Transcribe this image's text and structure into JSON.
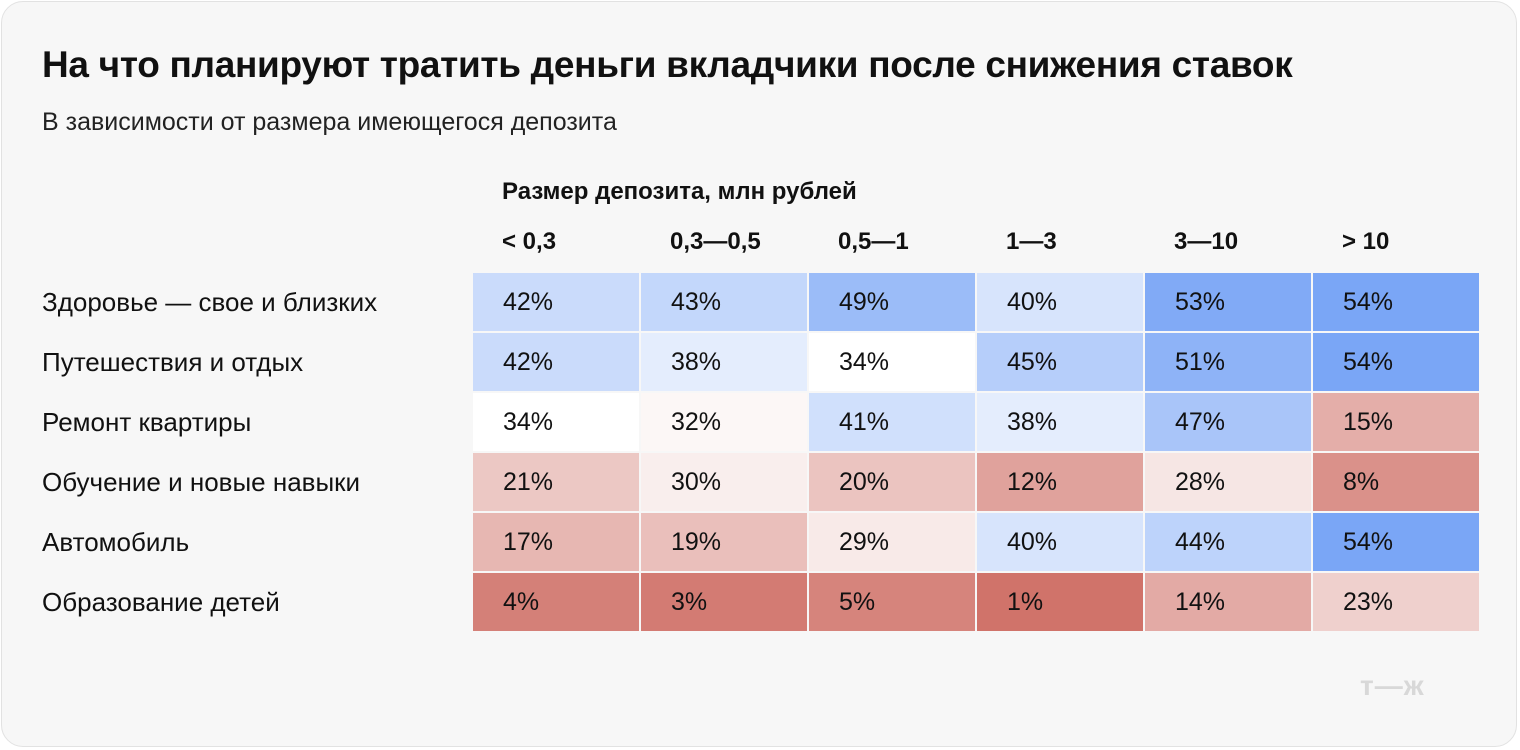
{
  "chart_data": {
    "type": "heatmap",
    "title": "На что планируют тратить деньги вкладчики после снижения ставок",
    "subtitle": "В зависимости от размера имеющегося депозита",
    "column_group_label": "Размер депозита, млн рублей",
    "columns": [
      "< 0,3",
      "0,3—0,5",
      "0,5—1",
      "1—3",
      "3—10",
      "> 10"
    ],
    "rows": [
      "Здоровье — свое и близких",
      "Путешествия и отдых",
      "Ремонт квартиры",
      "Обучение и новые навыки",
      "Автомобиль",
      "Образование детей"
    ],
    "values": [
      [
        42,
        43,
        49,
        40,
        53,
        54
      ],
      [
        42,
        38,
        34,
        45,
        51,
        54
      ],
      [
        34,
        32,
        41,
        38,
        47,
        15
      ],
      [
        21,
        30,
        20,
        12,
        28,
        8
      ],
      [
        17,
        19,
        29,
        40,
        44,
        54
      ],
      [
        4,
        3,
        5,
        1,
        14,
        23
      ]
    ],
    "unit": "%",
    "color_scale": {
      "low": "#d0736a",
      "mid": "#ffffff",
      "high": "#7aa6f6"
    }
  },
  "logo": "т—ж"
}
